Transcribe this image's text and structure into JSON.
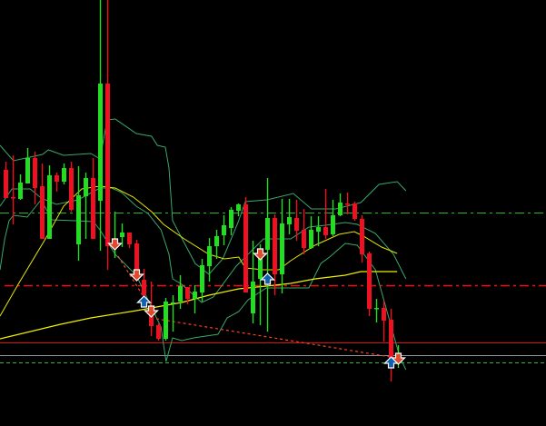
{
  "chart_data": {
    "type": "candlestick",
    "title": "",
    "xlabel": "",
    "ylabel": "",
    "ylim": [
      0,
      470
    ],
    "grid": false,
    "colors": {
      "background": "#000000",
      "bull": "#22dd22",
      "bear": "#ee1122",
      "bands": "#3aa86a",
      "ma_fast": "#e8e800",
      "ma_slow": "#f0f000",
      "sell_arrow": "#e04a2a",
      "buy_arrow": "#1060b0",
      "trade_line": "#ff4020"
    },
    "candles_ohlc": [
      [
        283,
        292,
        252,
        252
      ],
      [
        253,
        299,
        223,
        253
      ],
      [
        251,
        278,
        250,
        269
      ],
      [
        268,
        307,
        268,
        296
      ],
      [
        296,
        303,
        245,
        263
      ],
      [
        265,
        290,
        207,
        207
      ],
      [
        207,
        288,
        207,
        277
      ],
      [
        277,
        280,
        259,
        270
      ],
      [
        270,
        290,
        267,
        285
      ],
      [
        285,
        292,
        237,
        239
      ],
      [
        201,
        287,
        183,
        255
      ],
      [
        254,
        280,
        207,
        274
      ],
      [
        274,
        296,
        207,
        207
      ],
      [
        249,
        470,
        194,
        378
      ],
      [
        378,
        470,
        173,
        199
      ],
      [
        200,
        237,
        186,
        204
      ],
      [
        209,
        224,
        198,
        214
      ],
      [
        214,
        214,
        197,
        201
      ],
      [
        202,
        206,
        163,
        170
      ],
      [
        162,
        174,
        135,
        145
      ],
      [
        125,
        160,
        100,
        111
      ],
      [
        112,
        114,
        95,
        97
      ],
      [
        97,
        142,
        95,
        138
      ],
      [
        136,
        145,
        105,
        137
      ],
      [
        138,
        167,
        130,
        155
      ],
      [
        154,
        154,
        135,
        141
      ],
      [
        141,
        156,
        125,
        149
      ],
      [
        148,
        185,
        138,
        178
      ],
      [
        177,
        208,
        160,
        199
      ],
      [
        199,
        217,
        185,
        210
      ],
      [
        211,
        233,
        200,
        222
      ],
      [
        219,
        242,
        211,
        239
      ],
      [
        238,
        246,
        232,
        245
      ],
      [
        245,
        253,
        148,
        148
      ],
      [
        125,
        205,
        114,
        160
      ],
      [
        163,
        201,
        112,
        190
      ],
      [
        195,
        274,
        105,
        230
      ],
      [
        230,
        234,
        145,
        168
      ],
      [
        168,
        251,
        147,
        224
      ],
      [
        223,
        251,
        212,
        231
      ],
      [
        230,
        250,
        205,
        216
      ],
      [
        217,
        240,
        190,
        197
      ],
      [
        197,
        232,
        196,
        217
      ],
      [
        215,
        232,
        199,
        220
      ],
      [
        220,
        262,
        207,
        211
      ],
      [
        212,
        250,
        210,
        233
      ],
      [
        233,
        257,
        232,
        247
      ],
      [
        246,
        258,
        234,
        245
      ],
      [
        246,
        248,
        227,
        229
      ],
      [
        229,
        233,
        181,
        190
      ],
      [
        191,
        193,
        122,
        130
      ],
      [
        130,
        141,
        115,
        131
      ],
      [
        131,
        139,
        94,
        117
      ],
      [
        118,
        130,
        50,
        73
      ],
      [
        73,
        90,
        65,
        78
      ]
    ],
    "bollinger_upper": [
      [
        -0.75,
        310
      ],
      [
        1.1,
        293
      ],
      [
        5.1,
        300
      ],
      [
        5.9,
        305
      ],
      [
        8,
        299
      ],
      [
        11.75,
        301
      ],
      [
        13,
        295
      ],
      [
        14,
        338
      ],
      [
        15.1,
        339
      ],
      [
        18,
        323
      ],
      [
        20.1,
        320
      ],
      [
        20.9,
        310
      ],
      [
        22,
        308
      ],
      [
        22.5,
        285
      ],
      [
        23,
        227
      ],
      [
        24.25,
        208
      ],
      [
        26.1,
        180
      ],
      [
        28,
        168
      ],
      [
        29.9,
        185
      ],
      [
        32,
        225
      ],
      [
        33,
        248
      ],
      [
        36,
        250
      ],
      [
        39.6,
        257
      ],
      [
        42.1,
        240
      ],
      [
        45.5,
        240
      ],
      [
        48.9,
        247
      ],
      [
        51.4,
        267
      ],
      [
        53.9,
        270
      ],
      [
        55.1,
        260
      ]
    ],
    "bollinger_middle": [
      [
        -0.75,
        243
      ],
      [
        0.9,
        262
      ],
      [
        3.4,
        262
      ],
      [
        4.9,
        252
      ],
      [
        7,
        245
      ],
      [
        10,
        250
      ],
      [
        13,
        263
      ],
      [
        14.6,
        263
      ],
      [
        16,
        258
      ],
      [
        18,
        243
      ],
      [
        19.6,
        235
      ],
      [
        21.4,
        217
      ],
      [
        22.5,
        190
      ],
      [
        23,
        163
      ],
      [
        24.25,
        157
      ],
      [
        27,
        137
      ],
      [
        28.6,
        143
      ],
      [
        31.75,
        177
      ],
      [
        35.5,
        207
      ],
      [
        39.25,
        207
      ],
      [
        41.75,
        220
      ],
      [
        44,
        222
      ],
      [
        46.75,
        225
      ],
      [
        48.4,
        223
      ],
      [
        50.9,
        213
      ],
      [
        53.4,
        190
      ],
      [
        55.1,
        163
      ]
    ],
    "bollinger_lower": [
      [
        -0.75,
        173
      ],
      [
        -0.1,
        207
      ],
      [
        0.5,
        227
      ],
      [
        1.1,
        233
      ],
      [
        3,
        231
      ],
      [
        4.9,
        250
      ],
      [
        6.4,
        228
      ],
      [
        9.6,
        227
      ],
      [
        12.1,
        226
      ],
      [
        13,
        217
      ],
      [
        15.1,
        190
      ],
      [
        18,
        167
      ],
      [
        21.4,
        110
      ],
      [
        22.1,
        72
      ],
      [
        23,
        98
      ],
      [
        24.25,
        95
      ],
      [
        25.9,
        98
      ],
      [
        29.25,
        102
      ],
      [
        30.5,
        120
      ],
      [
        32.1,
        127
      ],
      [
        33.4,
        140
      ],
      [
        35.9,
        153
      ],
      [
        41.75,
        153
      ],
      [
        43.4,
        180
      ],
      [
        44.6,
        187
      ],
      [
        46.75,
        202
      ],
      [
        48.4,
        200
      ],
      [
        50.9,
        173
      ],
      [
        53,
        113
      ],
      [
        54.25,
        77
      ],
      [
        55.1,
        63
      ]
    ],
    "ma_fast": [
      [
        -0.75,
        122
      ],
      [
        1.75,
        157
      ],
      [
        5.5,
        207
      ],
      [
        8,
        243
      ],
      [
        10.5,
        262
      ],
      [
        13,
        265
      ],
      [
        15.1,
        263
      ],
      [
        17.6,
        253
      ],
      [
        20.1,
        237
      ],
      [
        21.75,
        223
      ],
      [
        24.6,
        207
      ],
      [
        28,
        190
      ],
      [
        30.1,
        185
      ],
      [
        32.1,
        187
      ],
      [
        33,
        175
      ],
      [
        35.5,
        173
      ],
      [
        37.6,
        173
      ],
      [
        39.25,
        183
      ],
      [
        42.6,
        200
      ],
      [
        45.9,
        212
      ],
      [
        48,
        215
      ],
      [
        49.25,
        210
      ],
      [
        51.75,
        198
      ],
      [
        53.9,
        191
      ]
    ],
    "ma_slow": [
      [
        -0.75,
        97
      ],
      [
        7.6,
        113
      ],
      [
        11.75,
        120
      ],
      [
        18,
        128
      ],
      [
        24.25,
        137
      ],
      [
        28,
        145
      ],
      [
        32.1,
        152
      ],
      [
        35.9,
        155
      ],
      [
        39.25,
        158
      ],
      [
        42.6,
        163
      ],
      [
        46.75,
        167
      ],
      [
        48.9,
        171
      ],
      [
        53.9,
        171
      ]
    ],
    "hlines": [
      {
        "price": 236,
        "color": "#22bb22",
        "style": "dashdot"
      },
      {
        "price": 156,
        "color": "#ee1111",
        "style": "dashdot"
      },
      {
        "price": 93,
        "color": "#dd1111",
        "style": "solid"
      },
      {
        "price": 79,
        "color": "#9098a0",
        "style": "solid"
      },
      {
        "price": 71,
        "color": "#33bb33",
        "style": "dashed"
      }
    ],
    "sell_signals": [
      [
        15,
        202
      ],
      [
        18,
        168
      ],
      [
        20,
        128
      ],
      [
        35,
        191
      ],
      [
        54,
        76
      ]
    ],
    "buy_signals": [
      [
        19,
        137
      ],
      [
        36,
        162
      ],
      [
        53,
        70
      ]
    ],
    "trade_lines": [
      [
        [
          20,
          120
        ],
        [
          53,
          77
        ]
      ],
      [
        [
          15.5,
          188
        ],
        [
          19.25,
          140
        ]
      ]
    ]
  }
}
